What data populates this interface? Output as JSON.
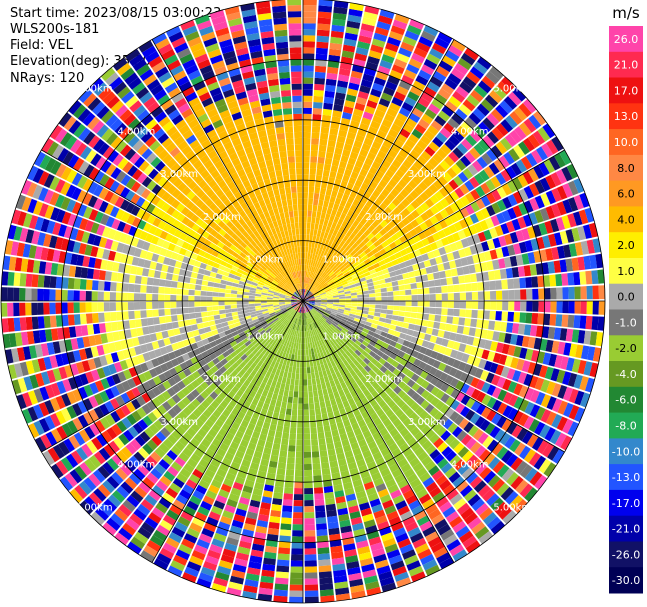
{
  "header": {
    "start_time": "Start time: 2023/08/15 03:00:23",
    "instrument": "WLS200s-181",
    "field": "Field: VEL",
    "elevation": "Elevation(deg): 35.30",
    "nrays": "NRays: 120"
  },
  "chart_data": {
    "type": "heatmap",
    "projection": "polar-ppi",
    "title": "",
    "field": "VEL",
    "unit": "m/s",
    "nrays": 120,
    "elevation_deg": 35.3,
    "max_range_km": 5.0,
    "range_rings_km": [
      1,
      2,
      3,
      4,
      5
    ],
    "ring_labels": [
      "1.00km",
      "2.00km",
      "3.00km",
      "4.00km",
      "5.00km"
    ],
    "colorbar": {
      "ticks": [
        26.0,
        21.0,
        17.0,
        13.0,
        10.0,
        8.0,
        6.0,
        4.0,
        2.0,
        1.0,
        0.0,
        -1.0,
        -2.0,
        -4.0,
        -6.0,
        -8.0,
        -10.0,
        -13.0,
        -17.0,
        -21.0,
        -26.0,
        -30.0
      ],
      "tick_labels": [
        "26.0",
        "21.0",
        "17.0",
        "13.0",
        "10.0",
        "8.0",
        "6.0",
        "4.0",
        "2.0",
        "1.0",
        "0.0",
        "-1.0",
        "-2.0",
        "-4.0",
        "-6.0",
        "-8.0",
        "-10.0",
        "-13.0",
        "-17.0",
        "-21.0",
        "-26.0",
        "-30.0"
      ],
      "colors": [
        "#ff44aa",
        "#ff2a50",
        "#ee1111",
        "#ff3311",
        "#ff6622",
        "#ff8844",
        "#ff9922",
        "#ffbb00",
        "#ffee00",
        "#ffff44",
        "#aaaaaa",
        "#777777",
        "#99cc33",
        "#669922",
        "#228833",
        "#22aa55",
        "#3388cc",
        "#2255ff",
        "#0000ee",
        "#0000aa",
        "#111166",
        "#000055"
      ]
    },
    "approaching_region": "north (positive, yellow/orange)",
    "receding_region": "south (negative, green)",
    "noise_beyond_km": 3.3
  }
}
